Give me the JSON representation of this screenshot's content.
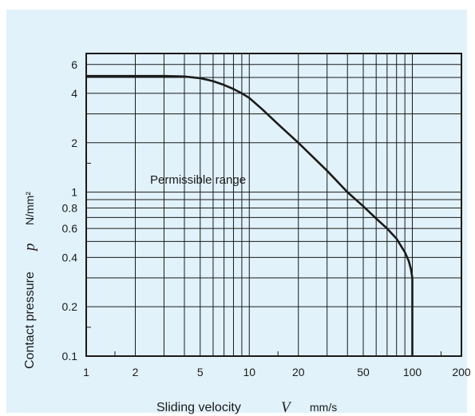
{
  "chart_data": {
    "type": "line",
    "x_scale": "log",
    "y_scale": "log",
    "xlim": [
      1,
      200
    ],
    "ylim": [
      0.1,
      7
    ],
    "grid": true,
    "background_color": "#e1f2fb",
    "line_color": "#1a1a1a",
    "x_ticks": [
      {
        "value": 1,
        "label": "1"
      },
      {
        "value": 2,
        "label": "2"
      },
      {
        "value": 5,
        "label": "5"
      },
      {
        "value": 10,
        "label": "10"
      },
      {
        "value": 20,
        "label": "20"
      },
      {
        "value": 50,
        "label": "50"
      },
      {
        "value": 100,
        "label": "100"
      },
      {
        "value": 200,
        "label": "200"
      }
    ],
    "y_ticks": [
      {
        "value": 0.1,
        "label": "0.1"
      },
      {
        "value": 0.2,
        "label": "0.2"
      },
      {
        "value": 0.4,
        "label": "0.4"
      },
      {
        "value": 0.6,
        "label": "0.6"
      },
      {
        "value": 0.8,
        "label": "0.8"
      },
      {
        "value": 1,
        "label": "1"
      },
      {
        "value": 2,
        "label": "2"
      },
      {
        "value": 4,
        "label": "4"
      },
      {
        "value": 6,
        "label": "6"
      }
    ],
    "x_grid": [
      1,
      2,
      3,
      4,
      5,
      6,
      7,
      8,
      9,
      10,
      20,
      30,
      40,
      50,
      60,
      70,
      80,
      90,
      100,
      200
    ],
    "y_grid": [
      0.1,
      0.2,
      0.3,
      0.4,
      0.5,
      0.6,
      0.7,
      0.8,
      0.9,
      1,
      2,
      3,
      4,
      5,
      6,
      7
    ],
    "x_minor_ticks": [
      1.5,
      15,
      150
    ],
    "y_minor_ticks": [
      0.15,
      1.5
    ],
    "xlabel": {
      "text": "Sliding velocity",
      "symbol": "V",
      "unit": "mm/s"
    },
    "ylabel": {
      "text": "Contact pressure",
      "symbol": "p",
      "unit": "N/mm²"
    },
    "annotation": "Permissible range",
    "series": [
      {
        "x": [
          1,
          3,
          4,
          5,
          6,
          7,
          8,
          9,
          10,
          12,
          15,
          20,
          30,
          40,
          50,
          60,
          70,
          80,
          90,
          95,
          98,
          100,
          100
        ],
        "y": [
          5.1,
          5.1,
          5.07,
          4.95,
          4.75,
          4.5,
          4.25,
          4.0,
          3.75,
          3.2,
          2.6,
          2.0,
          1.35,
          1.0,
          0.82,
          0.69,
          0.6,
          0.52,
          0.43,
          0.38,
          0.34,
          0.3,
          0.1
        ]
      }
    ]
  }
}
